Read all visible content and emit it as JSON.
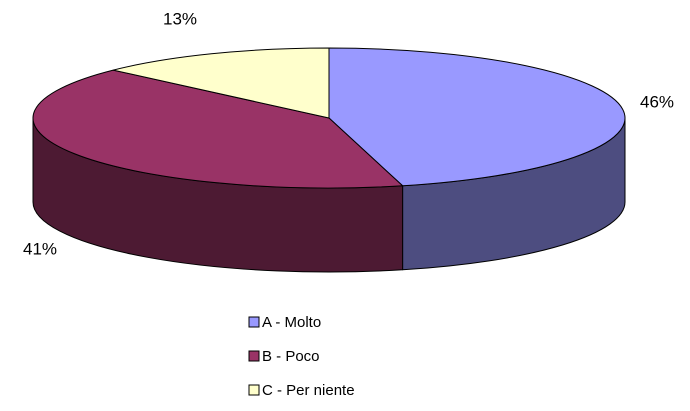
{
  "chart_data": {
    "type": "pie",
    "categories": [
      "A - Molto",
      "B - Poco",
      "C - Per niente"
    ],
    "values": [
      46,
      41,
      13
    ],
    "value_labels": [
      "46%",
      "41%",
      "13%"
    ],
    "colors": [
      "#9999ff",
      "#993366",
      "#ffffcc"
    ],
    "side_colors": [
      "#4d4d80",
      "#4d1a33",
      "#80806a"
    ],
    "legend": "bottom"
  }
}
